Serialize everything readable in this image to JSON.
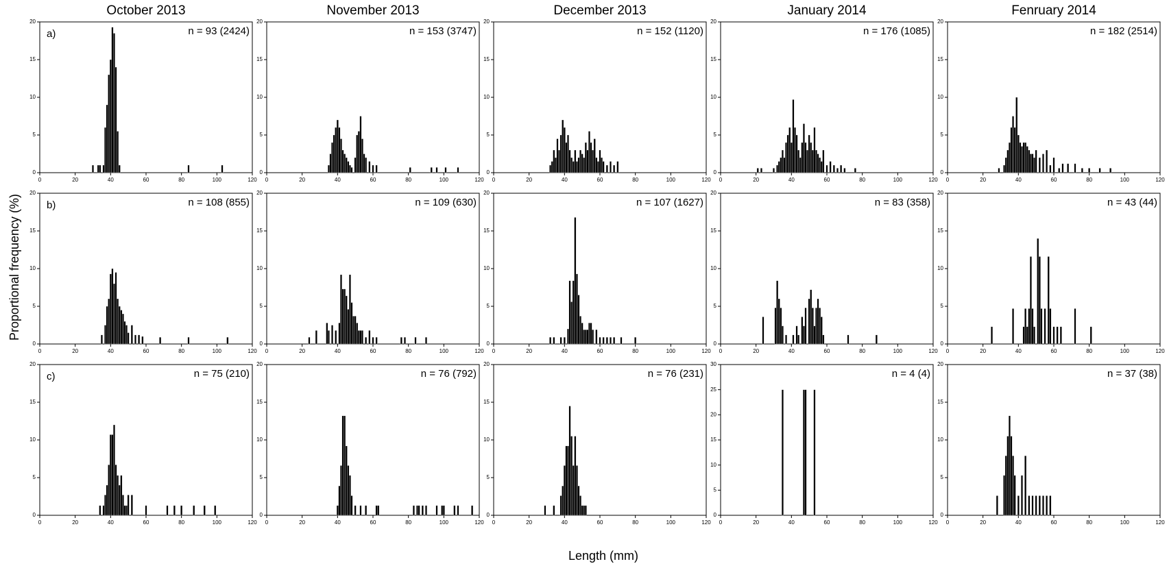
{
  "y_label": "Proportional frequency (%)",
  "x_label": "Length (mm)",
  "chart_data": [
    {
      "type": "bar",
      "title": "October 2013",
      "label": "a)",
      "annotation": "n = 93 (2424)",
      "color": "#000000",
      "xlim": [
        0,
        120
      ],
      "xticks": [
        0,
        20,
        40,
        60,
        80,
        100,
        120
      ],
      "ylim": [
        0,
        20
      ],
      "yticks": [
        0,
        5,
        10,
        15,
        20
      ],
      "x": [
        30,
        33,
        34,
        36,
        37,
        38,
        39,
        40,
        41,
        42,
        43,
        44,
        45,
        84,
        103
      ],
      "values": [
        1,
        1,
        1,
        1,
        6,
        9,
        13,
        15,
        19.3,
        18.5,
        14,
        5.5,
        1,
        1,
        1
      ]
    },
    {
      "type": "bar",
      "title": "November 2013",
      "annotation": "n = 153 (3747)",
      "color": "#000000",
      "xlim": [
        0,
        120
      ],
      "xticks": [
        0,
        20,
        40,
        60,
        80,
        100,
        120
      ],
      "ylim": [
        0,
        20
      ],
      "yticks": [
        0,
        5,
        10,
        15,
        20
      ],
      "x": [
        35,
        36,
        37,
        38,
        39,
        40,
        41,
        42,
        43,
        44,
        45,
        46,
        47,
        48,
        50,
        51,
        52,
        53,
        54,
        55,
        56,
        58,
        60,
        62,
        81,
        93,
        96,
        101,
        108
      ],
      "values": [
        1,
        2.5,
        4,
        5,
        6,
        7,
        6,
        4.5,
        3,
        2.5,
        2,
        1.5,
        1,
        0.7,
        2,
        5,
        5.5,
        7.5,
        4.5,
        2.5,
        2,
        1.5,
        1,
        1,
        0.7,
        0.7,
        0.7,
        0.7,
        0.7
      ]
    },
    {
      "type": "bar",
      "title": "December 2013",
      "annotation": "n = 152 (1120)",
      "color": "#000000",
      "xlim": [
        0,
        120
      ],
      "xticks": [
        0,
        20,
        40,
        60,
        80,
        100,
        120
      ],
      "ylim": [
        0,
        20
      ],
      "yticks": [
        0,
        5,
        10,
        15,
        20
      ],
      "x": [
        32,
        33,
        34,
        35,
        36,
        37,
        38,
        39,
        40,
        41,
        42,
        43,
        44,
        45,
        46,
        47,
        48,
        49,
        50,
        51,
        52,
        53,
        54,
        55,
        56,
        57,
        58,
        59,
        60,
        61,
        62,
        64,
        66,
        68,
        70
      ],
      "values": [
        1,
        1.5,
        3,
        2,
        4.5,
        3,
        5,
        7,
        6,
        4,
        5,
        3,
        2,
        1.5,
        3,
        1.5,
        2,
        3,
        2.5,
        2,
        4,
        3,
        5.5,
        4,
        3,
        4.5,
        2,
        1.5,
        3,
        2,
        1.5,
        1,
        1.5,
        1,
        1.5
      ]
    },
    {
      "type": "bar",
      "title": "January 2014",
      "annotation": "n = 176 (1085)",
      "color": "#000000",
      "xlim": [
        0,
        120
      ],
      "xticks": [
        0,
        20,
        40,
        60,
        80,
        100,
        120
      ],
      "ylim": [
        0,
        20
      ],
      "yticks": [
        0,
        5,
        10,
        15,
        20
      ],
      "x": [
        21,
        23,
        30,
        32,
        33,
        34,
        35,
        36,
        37,
        38,
        39,
        40,
        41,
        42,
        43,
        44,
        45,
        46,
        47,
        48,
        49,
        50,
        51,
        52,
        53,
        54,
        55,
        56,
        57,
        58,
        60,
        62,
        64,
        66,
        68,
        70,
        76
      ],
      "values": [
        0.6,
        0.6,
        0.6,
        1,
        1.5,
        2,
        3,
        2,
        4,
        5,
        6,
        4,
        9.7,
        6,
        5,
        3,
        2,
        4,
        6.5,
        4,
        3,
        5,
        4,
        3,
        6,
        3,
        2.5,
        2,
        1.5,
        3,
        1,
        1.5,
        1,
        0.6,
        1,
        0.6,
        0.6
      ]
    },
    {
      "type": "bar",
      "title": "Fenruary 2014",
      "annotation": "n = 182 (2514)",
      "color": "#000000",
      "xlim": [
        0,
        120
      ],
      "xticks": [
        0,
        20,
        40,
        60,
        80,
        100,
        120
      ],
      "ylim": [
        0,
        20
      ],
      "yticks": [
        0,
        5,
        10,
        15,
        20
      ],
      "x": [
        29,
        32,
        33,
        34,
        35,
        36,
        37,
        38,
        39,
        40,
        41,
        42,
        43,
        44,
        45,
        46,
        47,
        48,
        49,
        50,
        52,
        54,
        56,
        58,
        60,
        63,
        65,
        68,
        72,
        76,
        80,
        86,
        92
      ],
      "values": [
        0.6,
        1,
        2,
        3,
        4,
        6,
        7.5,
        6,
        10,
        5,
        4,
        3.5,
        4,
        4,
        3.5,
        3,
        2.5,
        2.5,
        2,
        3,
        2,
        2.5,
        3,
        1,
        2,
        0.6,
        1.2,
        1.2,
        1.2,
        0.6,
        0.6,
        0.6,
        0.6
      ]
    },
    {
      "type": "bar",
      "label": "b)",
      "annotation": "n = 108 (855)",
      "color": "#000000",
      "xlim": [
        0,
        120
      ],
      "xticks": [
        0,
        20,
        40,
        60,
        80,
        100,
        120
      ],
      "ylim": [
        0,
        20
      ],
      "yticks": [
        0,
        5,
        10,
        15,
        20
      ],
      "x": [
        35,
        37,
        38,
        39,
        40,
        41,
        42,
        43,
        44,
        45,
        46,
        47,
        48,
        49,
        50,
        52,
        54,
        56,
        58,
        68,
        84,
        106
      ],
      "values": [
        1.2,
        2.5,
        5,
        6,
        9.3,
        10,
        8,
        9.5,
        6,
        5,
        4.5,
        4,
        3,
        2.5,
        1.5,
        2.5,
        1.2,
        1.2,
        1,
        0.9,
        0.9,
        0.9
      ]
    },
    {
      "type": "bar",
      "annotation": "n = 109 (630)",
      "color": "#000000",
      "xlim": [
        0,
        120
      ],
      "xticks": [
        0,
        20,
        40,
        60,
        80,
        100,
        120
      ],
      "ylim": [
        0,
        20
      ],
      "yticks": [
        0,
        5,
        10,
        15,
        20
      ],
      "x": [
        24,
        28,
        34,
        35,
        37,
        39,
        41,
        42,
        43,
        44,
        45,
        46,
        47,
        48,
        49,
        50,
        51,
        52,
        53,
        54,
        56,
        58,
        60,
        62,
        76,
        78,
        84,
        90
      ],
      "values": [
        0.9,
        1.8,
        2.8,
        1.8,
        2.5,
        1.8,
        2.8,
        9.2,
        7.3,
        7.3,
        6.4,
        4.6,
        9.2,
        5.5,
        3.7,
        3.7,
        2.8,
        1.8,
        1.8,
        1.8,
        0.9,
        1.8,
        0.9,
        0.9,
        0.9,
        0.9,
        0.9,
        0.9
      ]
    },
    {
      "type": "bar",
      "annotation": "n = 107 (1627)",
      "color": "#000000",
      "xlim": [
        0,
        120
      ],
      "xticks": [
        0,
        20,
        40,
        60,
        80,
        100,
        120
      ],
      "ylim": [
        0,
        20
      ],
      "yticks": [
        0,
        5,
        10,
        15,
        20
      ],
      "x": [
        32,
        34,
        38,
        40,
        42,
        43,
        44,
        45,
        46,
        47,
        48,
        49,
        50,
        51,
        52,
        53,
        54,
        55,
        56,
        58,
        60,
        62,
        64,
        66,
        68,
        72,
        80
      ],
      "values": [
        0.9,
        0.9,
        0.9,
        0.9,
        2,
        8.4,
        5.6,
        8.4,
        16.8,
        9.3,
        6.5,
        3.7,
        2.8,
        1.9,
        1.9,
        1.9,
        2.8,
        2.8,
        1.9,
        1.9,
        0.9,
        0.9,
        0.9,
        0.9,
        0.9,
        0.9,
        0.9
      ]
    },
    {
      "type": "bar",
      "annotation": "n = 83 (358)",
      "color": "#000000",
      "xlim": [
        0,
        120
      ],
      "xticks": [
        0,
        20,
        40,
        60,
        80,
        100,
        120
      ],
      "ylim": [
        0,
        20
      ],
      "yticks": [
        0,
        5,
        10,
        15,
        20
      ],
      "x": [
        24,
        31,
        32,
        33,
        34,
        35,
        37,
        41,
        43,
        44,
        46,
        47,
        48,
        50,
        51,
        52,
        53,
        54,
        55,
        56,
        57,
        58,
        72,
        88
      ],
      "values": [
        3.6,
        4.8,
        8.4,
        6,
        4.8,
        2.4,
        1.2,
        1.2,
        2.4,
        1.2,
        3.6,
        2.4,
        4.8,
        6,
        7.2,
        4.8,
        2.4,
        4.8,
        6,
        4.8,
        3.6,
        1.2,
        1.2,
        1.2
      ]
    },
    {
      "type": "bar",
      "annotation": "n = 43 (44)",
      "color": "#000000",
      "xlim": [
        0,
        120
      ],
      "xticks": [
        0,
        20,
        40,
        60,
        80,
        100,
        120
      ],
      "ylim": [
        0,
        20
      ],
      "yticks": [
        0,
        5,
        10,
        15,
        20
      ],
      "x": [
        25,
        37,
        43,
        44,
        45,
        46,
        47,
        48,
        49,
        51,
        52,
        53,
        55,
        57,
        58,
        60,
        62,
        64,
        72,
        81
      ],
      "values": [
        2.3,
        4.7,
        2.3,
        4.7,
        2.3,
        4.7,
        11.6,
        4.7,
        2.3,
        14,
        11.6,
        4.7,
        4.7,
        11.6,
        4.7,
        2.3,
        2.3,
        2.3,
        4.7,
        2.3
      ]
    },
    {
      "type": "bar",
      "label": "c)",
      "annotation": "n = 75 (210)",
      "color": "#000000",
      "xlim": [
        0,
        120
      ],
      "xticks": [
        0,
        20,
        40,
        60,
        80,
        100,
        120
      ],
      "ylim": [
        0,
        20
      ],
      "yticks": [
        0,
        5,
        10,
        15,
        20
      ],
      "x": [
        34,
        36,
        37,
        38,
        39,
        40,
        41,
        42,
        43,
        44,
        45,
        46,
        47,
        48,
        49,
        50,
        52,
        60,
        72,
        76,
        80,
        87,
        93,
        99
      ],
      "values": [
        1.3,
        1.3,
        2.7,
        4,
        6.7,
        10.7,
        10.7,
        12,
        6.7,
        5.3,
        4,
        5.3,
        2.7,
        1.3,
        1.3,
        2.7,
        2.7,
        1.3,
        1.3,
        1.3,
        1.3,
        1.3,
        1.3,
        1.3
      ]
    },
    {
      "type": "bar",
      "annotation": "n = 76 (792)",
      "color": "#000000",
      "xlim": [
        0,
        120
      ],
      "xticks": [
        0,
        20,
        40,
        60,
        80,
        100,
        120
      ],
      "ylim": [
        0,
        20
      ],
      "yticks": [
        0,
        5,
        10,
        15,
        20
      ],
      "x": [
        40,
        41,
        42,
        43,
        44,
        45,
        46,
        47,
        48,
        50,
        53,
        56,
        62,
        63,
        83,
        85,
        86,
        88,
        90,
        96,
        99,
        100,
        106,
        108,
        116
      ],
      "values": [
        1.3,
        3.9,
        6.6,
        13.2,
        13.2,
        9.2,
        6.6,
        5.3,
        2.6,
        1.3,
        1.3,
        1.3,
        1.3,
        1.3,
        1.3,
        1.3,
        1.3,
        1.3,
        1.3,
        1.3,
        1.3,
        1.3,
        1.3,
        1.3,
        1.3
      ]
    },
    {
      "type": "bar",
      "annotation": "n = 76 (231)",
      "color": "#000000",
      "xlim": [
        0,
        120
      ],
      "xticks": [
        0,
        20,
        40,
        60,
        80,
        100,
        120
      ],
      "ylim": [
        0,
        20
      ],
      "yticks": [
        0,
        5,
        10,
        15,
        20
      ],
      "x": [
        29,
        34,
        38,
        39,
        40,
        41,
        42,
        43,
        44,
        45,
        46,
        47,
        48,
        49,
        50,
        51,
        52
      ],
      "values": [
        1.3,
        1.3,
        2.6,
        3.9,
        6.6,
        9.2,
        9.2,
        14.5,
        10.5,
        6.6,
        10.5,
        6.6,
        3.9,
        2.6,
        1.3,
        1.3,
        1.3
      ]
    },
    {
      "type": "bar",
      "annotation": "n = 4 (4)",
      "color": "#000000",
      "xlim": [
        0,
        120
      ],
      "xticks": [
        0,
        20,
        40,
        60,
        80,
        100,
        120
      ],
      "ylim": [
        0,
        30
      ],
      "yticks": [
        0,
        5,
        10,
        15,
        20,
        25,
        30
      ],
      "x": [
        35,
        47,
        48,
        53
      ],
      "values": [
        25,
        25,
        25,
        25
      ]
    },
    {
      "type": "bar",
      "annotation": "n = 37 (38)",
      "color": "#000000",
      "xlim": [
        0,
        120
      ],
      "xticks": [
        0,
        20,
        40,
        60,
        80,
        100,
        120
      ],
      "ylim": [
        0,
        20
      ],
      "yticks": [
        0,
        5,
        10,
        15,
        20
      ],
      "x": [
        28,
        32,
        33,
        34,
        35,
        36,
        37,
        38,
        40,
        42,
        44,
        46,
        48,
        50,
        52,
        54,
        56,
        58
      ],
      "values": [
        2.6,
        5.3,
        7.9,
        10.5,
        13.2,
        10.5,
        7.9,
        5.3,
        2.6,
        5.3,
        7.9,
        2.6,
        2.6,
        2.6,
        2.6,
        2.6,
        2.6,
        2.6
      ]
    }
  ]
}
